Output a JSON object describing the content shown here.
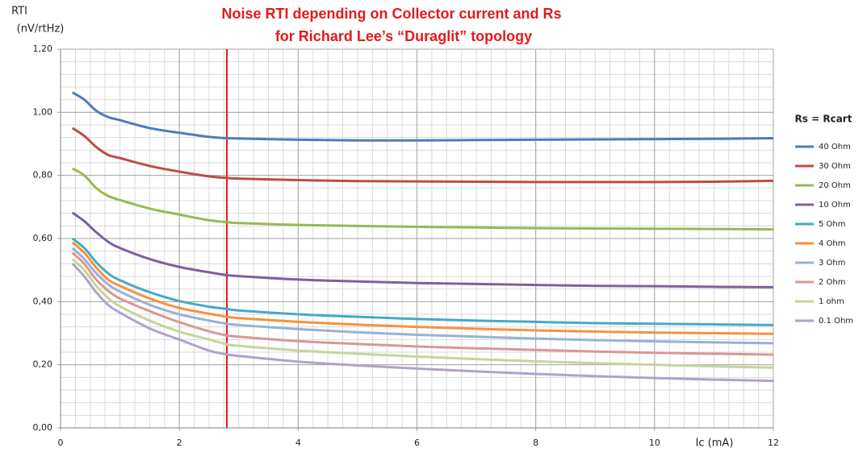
{
  "chart_data": {
    "type": "line",
    "title": [
      "Noise RTI depending on Collector current and Rs",
      "for Richard Lee’s “Duraglit” topology"
    ],
    "y_label": [
      "RTI",
      "(nV/rtHz)"
    ],
    "x_label": "Ic (mA)",
    "legend_title": "Rs = Rcart",
    "legend": "right",
    "grid": true,
    "minor_step": {
      "x": 0.25,
      "y": 0.04
    },
    "marker_line": {
      "x": 2.8,
      "color": "#e31a1c"
    },
    "xlim": [
      0,
      12
    ],
    "xticks": [
      0,
      2,
      4,
      6,
      8,
      10,
      12
    ],
    "ylim": [
      0,
      1.2
    ],
    "yticks": [
      {
        "value": 0,
        "label": "0,00"
      },
      {
        "value": 0.2,
        "label": "0,20"
      },
      {
        "value": 0.4,
        "label": "0,40"
      },
      {
        "value": 0.6,
        "label": "0,60"
      },
      {
        "value": 0.8,
        "label": "0,80"
      },
      {
        "value": 1.0,
        "label": "1,00"
      },
      {
        "value": 1.2,
        "label": "1,20"
      }
    ],
    "x": [
      0.2,
      0.4,
      0.6,
      0.8,
      1,
      1.5,
      2,
      2.5,
      2.8,
      3,
      4,
      5,
      6,
      7,
      8,
      9,
      10,
      11,
      12
    ],
    "series": [
      {
        "name": "40 Ohm",
        "color": "#4a7ebb",
        "values": [
          1.063,
          1.04,
          1.005,
          0.985,
          0.975,
          0.95,
          0.935,
          0.922,
          0.918,
          0.917,
          0.913,
          0.911,
          0.911,
          0.912,
          0.913,
          0.914,
          0.915,
          0.916,
          0.918
        ]
      },
      {
        "name": "30 Ohm",
        "color": "#be4b48",
        "values": [
          0.95,
          0.925,
          0.89,
          0.865,
          0.855,
          0.83,
          0.812,
          0.797,
          0.792,
          0.79,
          0.785,
          0.782,
          0.781,
          0.78,
          0.779,
          0.779,
          0.779,
          0.78,
          0.783
        ]
      },
      {
        "name": "20 Ohm",
        "color": "#98b954",
        "values": [
          0.822,
          0.8,
          0.76,
          0.735,
          0.722,
          0.695,
          0.676,
          0.658,
          0.652,
          0.649,
          0.643,
          0.64,
          0.637,
          0.635,
          0.633,
          0.632,
          0.631,
          0.63,
          0.629
        ]
      },
      {
        "name": "10 Ohm",
        "color": "#7d60a0",
        "values": [
          0.682,
          0.655,
          0.62,
          0.59,
          0.57,
          0.535,
          0.51,
          0.493,
          0.484,
          0.481,
          0.47,
          0.464,
          0.459,
          0.456,
          0.453,
          0.45,
          0.449,
          0.447,
          0.446
        ]
      },
      {
        "name": "5 Ohm",
        "color": "#46aac5",
        "values": [
          0.6,
          0.57,
          0.525,
          0.49,
          0.468,
          0.43,
          0.402,
          0.384,
          0.377,
          0.372,
          0.36,
          0.352,
          0.345,
          0.34,
          0.336,
          0.332,
          0.33,
          0.328,
          0.326
        ]
      },
      {
        "name": "4 Ohm",
        "color": "#f69240",
        "values": [
          0.588,
          0.555,
          0.508,
          0.47,
          0.45,
          0.41,
          0.38,
          0.362,
          0.352,
          0.348,
          0.336,
          0.327,
          0.32,
          0.314,
          0.309,
          0.305,
          0.302,
          0.3,
          0.298
        ]
      },
      {
        "name": "3 Ohm",
        "color": "#95b3d7",
        "values": [
          0.57,
          0.535,
          0.49,
          0.455,
          0.432,
          0.39,
          0.36,
          0.34,
          0.33,
          0.326,
          0.313,
          0.303,
          0.295,
          0.289,
          0.283,
          0.278,
          0.274,
          0.271,
          0.268
        ]
      },
      {
        "name": "2 Ohm",
        "color": "#d99795",
        "values": [
          0.555,
          0.52,
          0.47,
          0.435,
          0.41,
          0.37,
          0.335,
          0.306,
          0.293,
          0.289,
          0.275,
          0.266,
          0.258,
          0.252,
          0.247,
          0.242,
          0.238,
          0.235,
          0.232
        ]
      },
      {
        "name": "1 ohm",
        "color": "#c3d69b",
        "values": [
          0.535,
          0.5,
          0.45,
          0.412,
          0.385,
          0.34,
          0.305,
          0.28,
          0.265,
          0.26,
          0.245,
          0.235,
          0.226,
          0.218,
          0.211,
          0.205,
          0.2,
          0.195,
          0.191
        ]
      },
      {
        "name": "0.1 Ohm",
        "color": "#b3a2c7",
        "values": [
          0.521,
          0.48,
          0.43,
          0.39,
          0.365,
          0.315,
          0.28,
          0.245,
          0.233,
          0.228,
          0.21,
          0.198,
          0.188,
          0.179,
          0.171,
          0.164,
          0.158,
          0.153,
          0.149
        ]
      }
    ]
  }
}
